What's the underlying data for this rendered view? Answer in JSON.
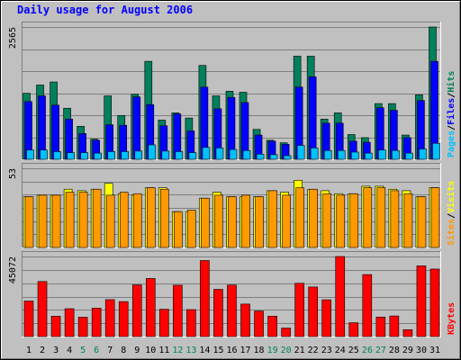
{
  "chart_data": [
    {
      "type": "bar",
      "title": "Daily usage for August 2006",
      "categories": [
        "1",
        "2",
        "3",
        "4",
        "5",
        "6",
        "7",
        "8",
        "9",
        "10",
        "11",
        "12",
        "13",
        "14",
        "15",
        "16",
        "17",
        "18",
        "19",
        "20",
        "21",
        "22",
        "23",
        "24",
        "25",
        "26",
        "27",
        "28",
        "29",
        "30",
        "31"
      ],
      "weekend_days": [
        "5",
        "6",
        "12",
        "13",
        "19",
        "20",
        "26",
        "27"
      ],
      "ymax_label": "2565",
      "ylim": [
        0,
        2565
      ],
      "series": [
        {
          "name": "Hits",
          "color": "#00805c",
          "values": [
            1280,
            1440,
            1500,
            990,
            640,
            390,
            1230,
            850,
            1260,
            1900,
            760,
            900,
            800,
            1820,
            1230,
            1320,
            1300,
            580,
            370,
            320,
            2000,
            2000,
            780,
            900,
            480,
            420,
            1080,
            1080,
            470,
            1250,
            2565
          ]
        },
        {
          "name": "Files",
          "color": "#0000ff",
          "values": [
            1120,
            1230,
            1050,
            780,
            500,
            370,
            670,
            660,
            1210,
            1060,
            650,
            880,
            550,
            1400,
            980,
            1200,
            1100,
            470,
            350,
            290,
            1400,
            1600,
            700,
            700,
            350,
            330,
            1000,
            950,
            420,
            1140,
            1900
          ]
        },
        {
          "name": "Pages",
          "color": "#00c0ff",
          "values": [
            180,
            180,
            150,
            130,
            130,
            120,
            150,
            150,
            160,
            280,
            160,
            150,
            130,
            230,
            220,
            190,
            170,
            100,
            90,
            70,
            270,
            220,
            170,
            170,
            140,
            120,
            180,
            170,
            120,
            200,
            310
          ]
        }
      ],
      "legend": [
        "Pages",
        "Files",
        "Hits"
      ],
      "legend_seps": [
        "/",
        "/"
      ]
    },
    {
      "type": "bar",
      "ymax_label": "53",
      "ylim": [
        0,
        53
      ],
      "series": [
        {
          "name": "Visits",
          "color": "#ffff00",
          "values": [
            34,
            35,
            35,
            39,
            38,
            39,
            43,
            36,
            35,
            40,
            40,
            24,
            24,
            33,
            37,
            34,
            34,
            34,
            38,
            37,
            45,
            39,
            38,
            36,
            36,
            41,
            41,
            39,
            38,
            34,
            40
          ]
        },
        {
          "name": "Sites",
          "color": "#ff9900",
          "values": [
            34,
            35,
            35,
            37,
            37,
            39,
            35,
            37,
            36,
            40,
            39,
            24,
            25,
            33,
            35,
            34,
            35,
            34,
            38,
            35,
            40,
            39,
            36,
            35,
            36,
            40,
            40,
            38,
            36,
            34,
            40
          ]
        }
      ],
      "legend": [
        "Sites",
        "Visits"
      ],
      "legend_seps": [
        "/"
      ]
    },
    {
      "type": "bar",
      "ymax_label": "45072",
      "ylim": [
        0,
        45072
      ],
      "series": [
        {
          "name": "KBytes",
          "color": "#ff0000",
          "values": [
            20000,
            31000,
            11500,
            15700,
            10900,
            16000,
            20800,
            19700,
            29100,
            32700,
            15400,
            28900,
            15200,
            42800,
            26600,
            29000,
            18300,
            14400,
            11500,
            4800,
            30000,
            27900,
            20700,
            45072,
            7800,
            34900,
            11000,
            11600,
            3900,
            39800,
            38000
          ]
        }
      ],
      "legend": [
        "KBytes"
      ],
      "legend_seps": []
    }
  ]
}
